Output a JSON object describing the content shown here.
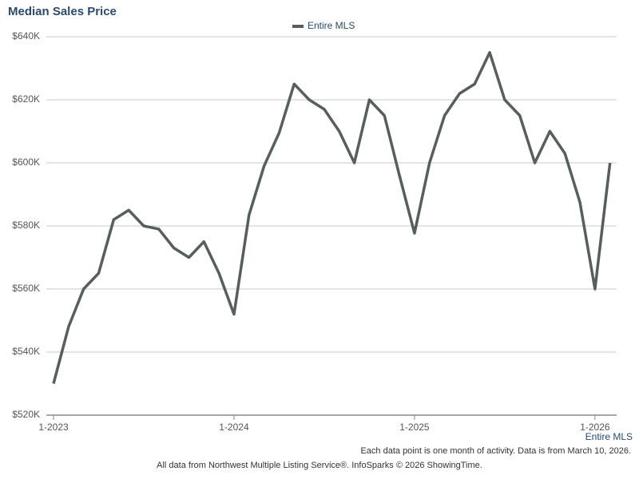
{
  "chart_data": {
    "type": "line",
    "title": "Median Sales Price",
    "categories": [
      "1-2023",
      null,
      null,
      null,
      null,
      null,
      null,
      null,
      null,
      null,
      null,
      null,
      "1-2024",
      null,
      null,
      null,
      null,
      null,
      null,
      null,
      null,
      null,
      null,
      null,
      "1-2025",
      null,
      null,
      null,
      null,
      null,
      null,
      null,
      null,
      null,
      null,
      null,
      "1-2026",
      null
    ],
    "series": [
      {
        "name": "Entire MLS",
        "color": "#575f5d",
        "values": [
          530000,
          548000,
          560000,
          565000,
          582000,
          585000,
          580000,
          579000,
          573000,
          570000,
          575000,
          565000,
          552000,
          583500,
          599000,
          609500,
          625000,
          620000,
          617000,
          610000,
          600000,
          620000,
          615000,
          596000,
          577700,
          600000,
          615000,
          622000,
          625000,
          635000,
          620000,
          615000,
          600000,
          610000,
          603000,
          587500,
          560000,
          600000
        ]
      }
    ],
    "ylim": [
      520000,
      640000
    ],
    "yticks": [
      {
        "value": 520000,
        "label": "$520K"
      },
      {
        "value": 540000,
        "label": "$540K"
      },
      {
        "value": 560000,
        "label": "$560K"
      },
      {
        "value": 580000,
        "label": "$580K"
      },
      {
        "value": 600000,
        "label": "$600K"
      },
      {
        "value": 620000,
        "label": "$620K"
      },
      {
        "value": 640000,
        "label": "$640K"
      }
    ],
    "grid": true,
    "legend": "top",
    "footer_link": "Entire MLS",
    "footnote": "Each data point is one month of activity. Data is from March 10, 2026.",
    "source": "All data from Northwest Multiple Listing Service®. InfoSparks © 2026 ShowingTime."
  }
}
